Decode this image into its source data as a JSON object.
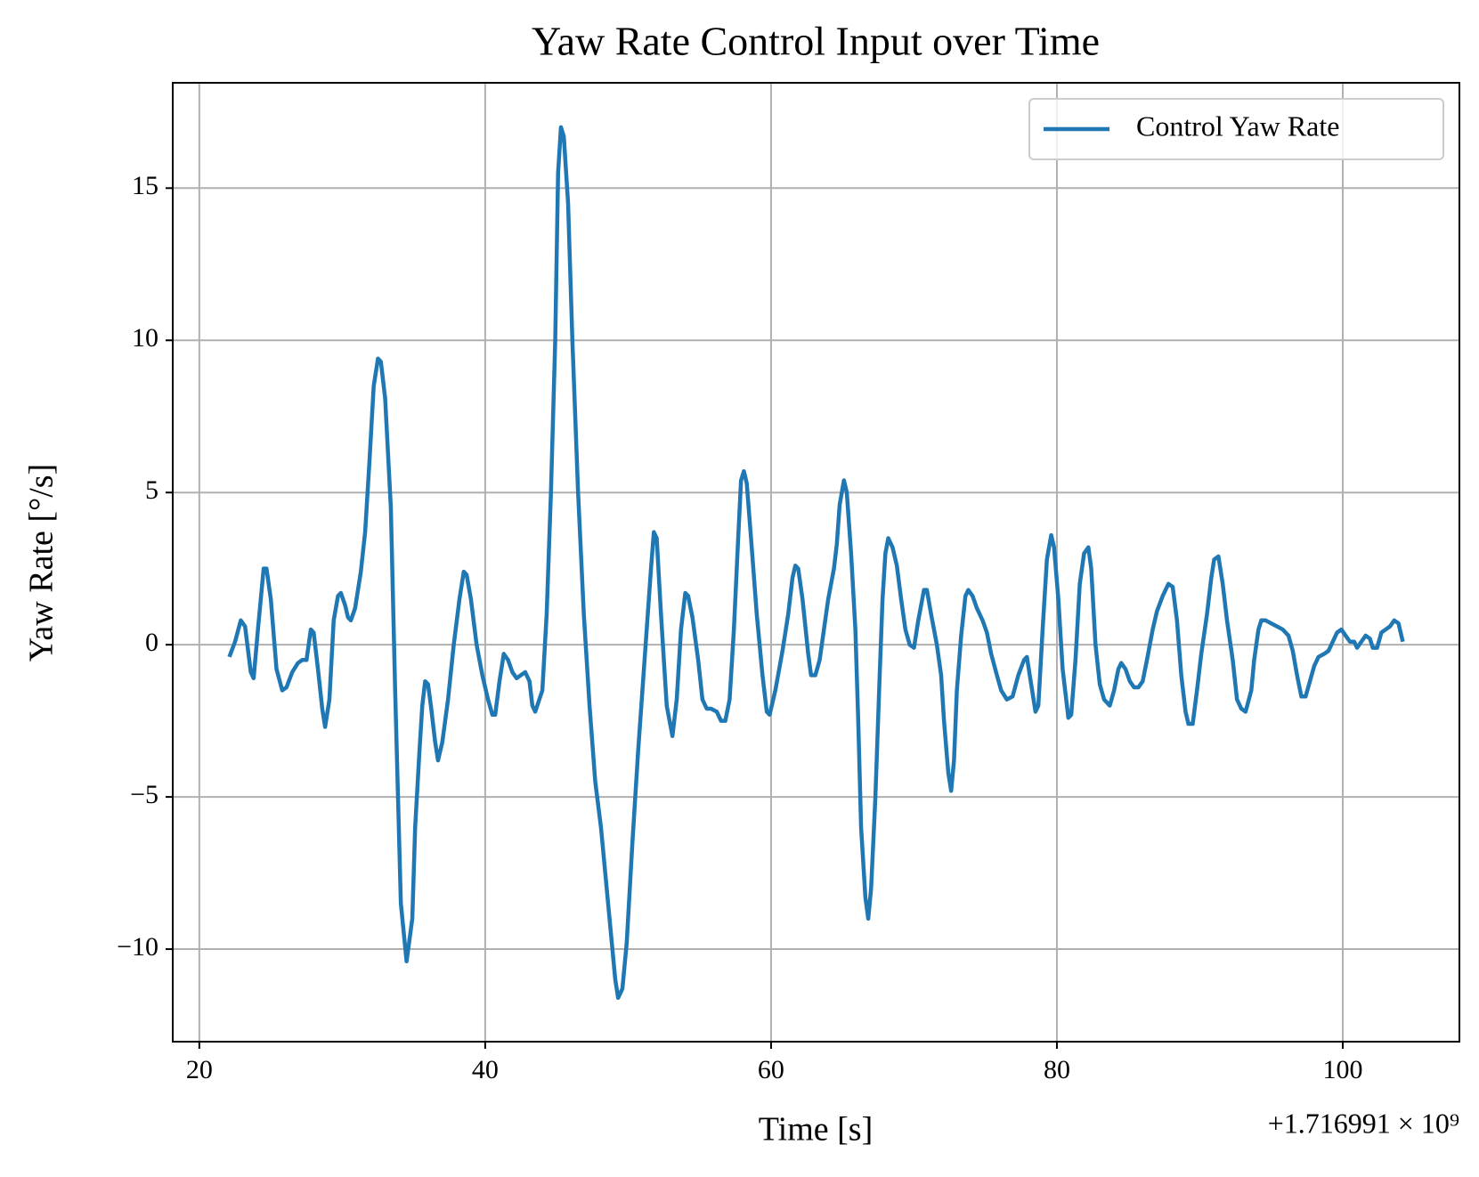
{
  "chart_data": {
    "type": "line",
    "title": "Yaw Rate Control Input over Time",
    "xlabel": "Time [s]",
    "ylabel": "Yaw Rate [°/s]",
    "x_offset": "+1.716991 × 10⁹",
    "xlim": [
      18.14,
      108.16
    ],
    "ylim": [
      -13.04,
      18.46
    ],
    "xticks": [
      20,
      40,
      60,
      80,
      100
    ],
    "yticks": [
      {
        "value": -10,
        "label": "−10"
      },
      {
        "value": -5,
        "label": "−5"
      },
      0,
      5,
      10,
      15
    ],
    "grid": true,
    "legend": "upper right",
    "x": [
      22.1,
      22.5,
      22.9,
      23.2,
      23.6,
      23.8,
      24.1,
      24.5,
      24.7,
      25.0,
      25.4,
      25.8,
      26.1,
      26.5,
      26.9,
      27.2,
      27.5,
      27.8,
      28.0,
      28.3,
      28.6,
      28.8,
      29.1,
      29.4,
      29.7,
      29.9,
      30.2,
      30.4,
      30.6,
      30.9,
      31.3,
      31.6,
      31.9,
      32.2,
      32.5,
      32.7,
      33.0,
      33.4,
      33.7,
      33.9,
      34.1,
      34.5,
      34.9,
      35.1,
      35.4,
      35.6,
      35.8,
      36.0,
      36.2,
      36.5,
      36.7,
      37.0,
      37.4,
      37.8,
      38.2,
      38.5,
      38.7,
      39.0,
      39.4,
      39.8,
      40.2,
      40.5,
      40.7,
      41.0,
      41.3,
      41.6,
      41.9,
      42.2,
      42.5,
      42.8,
      43.1,
      43.3,
      43.5,
      44.0,
      44.3,
      44.6,
      44.9,
      45.1,
      45.3,
      45.5,
      45.8,
      46.1,
      46.5,
      46.9,
      47.3,
      47.7,
      48.1,
      48.4,
      48.8,
      49.1,
      49.3,
      49.6,
      49.9,
      50.3,
      50.7,
      51.0,
      51.3,
      51.6,
      51.8,
      52.0,
      52.3,
      52.7,
      53.1,
      53.4,
      53.7,
      54.0,
      54.2,
      54.5,
      54.9,
      55.2,
      55.5,
      55.8,
      56.2,
      56.5,
      56.8,
      57.1,
      57.4,
      57.7,
      57.9,
      58.1,
      58.3,
      58.6,
      59.0,
      59.4,
      59.7,
      59.9,
      60.3,
      60.8,
      61.2,
      61.5,
      61.7,
      61.9,
      62.2,
      62.6,
      62.8,
      63.1,
      63.4,
      63.7,
      64.0,
      64.4,
      64.6,
      64.8,
      65.1,
      65.3,
      65.6,
      65.9,
      66.1,
      66.3,
      66.6,
      66.8,
      67.0,
      67.3,
      67.6,
      67.8,
      68.0,
      68.2,
      68.5,
      68.8,
      69.1,
      69.4,
      69.7,
      70.0,
      70.3,
      70.7,
      70.9,
      71.2,
      71.6,
      71.9,
      72.1,
      72.4,
      72.6,
      72.8,
      73.0,
      73.3,
      73.6,
      73.8,
      74.1,
      74.4,
      74.8,
      75.1,
      75.4,
      75.8,
      76.1,
      76.5,
      76.9,
      77.3,
      77.7,
      77.9,
      78.2,
      78.5,
      78.7,
      79.0,
      79.3,
      79.6,
      79.8,
      80.1,
      80.4,
      80.8,
      81.0,
      81.3,
      81.6,
      81.9,
      82.2,
      82.4,
      82.7,
      83.0,
      83.3,
      83.7,
      84.0,
      84.3,
      84.5,
      84.8,
      85.1,
      85.4,
      85.7,
      86.0,
      86.3,
      86.7,
      87.0,
      87.4,
      87.8,
      88.1,
      88.4,
      88.7,
      89.0,
      89.2,
      89.5,
      89.8,
      90.1,
      90.5,
      90.8,
      91.0,
      91.3,
      91.6,
      91.9,
      92.3,
      92.6,
      92.9,
      93.2,
      93.6,
      93.8,
      94.1,
      94.3,
      94.6,
      95.0,
      95.4,
      95.8,
      96.2,
      96.5,
      96.8,
      97.1,
      97.4,
      97.7,
      98.0,
      98.3,
      98.7,
      99.0,
      99.3,
      99.6,
      99.9,
      100.2,
      100.5,
      100.8,
      101.0,
      101.3,
      101.6,
      101.9,
      102.1,
      102.4,
      102.7,
      103.0,
      103.3,
      103.6,
      103.9,
      104.2
    ],
    "series": [
      {
        "name": "Control Yaw Rate",
        "color": "#1f77b4",
        "values": [
          -0.4,
          0.1,
          0.8,
          0.6,
          -0.9,
          -1.1,
          0.5,
          2.5,
          2.5,
          1.5,
          -0.8,
          -1.5,
          -1.4,
          -0.9,
          -0.6,
          -0.5,
          -0.5,
          0.5,
          0.4,
          -0.8,
          -2.1,
          -2.7,
          -1.8,
          0.8,
          1.6,
          1.7,
          1.3,
          0.9,
          0.8,
          1.2,
          2.4,
          3.7,
          6.0,
          8.5,
          9.4,
          9.3,
          8.1,
          4.5,
          -1.5,
          -5.0,
          -8.5,
          -10.4,
          -9.0,
          -6.0,
          -3.5,
          -2.0,
          -1.2,
          -1.3,
          -2.0,
          -3.2,
          -3.8,
          -3.2,
          -1.8,
          0.0,
          1.5,
          2.4,
          2.3,
          1.5,
          0.0,
          -1.0,
          -1.8,
          -2.3,
          -2.3,
          -1.2,
          -0.3,
          -0.5,
          -0.9,
          -1.1,
          -1.0,
          -0.9,
          -1.2,
          -2.0,
          -2.2,
          -1.5,
          1.0,
          5.0,
          10.0,
          15.5,
          17.0,
          16.7,
          14.5,
          10.0,
          5.0,
          1.0,
          -2.0,
          -4.5,
          -6.0,
          -7.5,
          -9.5,
          -11.0,
          -11.6,
          -11.3,
          -9.8,
          -6.5,
          -3.5,
          -1.5,
          0.5,
          2.5,
          3.7,
          3.5,
          1.0,
          -2.0,
          -3.0,
          -1.8,
          0.5,
          1.7,
          1.6,
          0.9,
          -0.5,
          -1.8,
          -2.1,
          -2.1,
          -2.2,
          -2.5,
          -2.5,
          -1.8,
          0.5,
          3.5,
          5.4,
          5.7,
          5.3,
          3.5,
          1.0,
          -1.0,
          -2.2,
          -2.3,
          -1.5,
          -0.2,
          1.0,
          2.2,
          2.6,
          2.5,
          1.5,
          -0.3,
          -1.0,
          -1.0,
          -0.5,
          0.5,
          1.5,
          2.5,
          3.3,
          4.6,
          5.4,
          5.0,
          3.0,
          0.5,
          -2.5,
          -6.0,
          -8.3,
          -9.0,
          -8.0,
          -5.0,
          -1.0,
          1.5,
          3.0,
          3.5,
          3.2,
          2.6,
          1.5,
          0.5,
          0.0,
          -0.1,
          0.8,
          1.8,
          1.8,
          1.0,
          0.0,
          -1.0,
          -2.5,
          -4.2,
          -4.8,
          -3.8,
          -1.5,
          0.3,
          1.6,
          1.8,
          1.6,
          1.2,
          0.8,
          0.4,
          -0.3,
          -1.0,
          -1.5,
          -1.8,
          -1.7,
          -1.0,
          -0.5,
          -0.4,
          -1.3,
          -2.2,
          -2.0,
          0.5,
          2.8,
          3.6,
          3.2,
          1.5,
          -0.8,
          -2.4,
          -2.3,
          -0.5,
          2.0,
          3.0,
          3.2,
          2.5,
          0.0,
          -1.3,
          -1.8,
          -2.0,
          -1.5,
          -0.8,
          -0.6,
          -0.8,
          -1.2,
          -1.4,
          -1.4,
          -1.2,
          -0.5,
          0.5,
          1.1,
          1.6,
          2.0,
          1.9,
          0.8,
          -1.0,
          -2.2,
          -2.6,
          -2.6,
          -1.5,
          -0.3,
          1.0,
          2.2,
          2.8,
          2.9,
          2.0,
          0.8,
          -0.5,
          -1.8,
          -2.1,
          -2.2,
          -1.5,
          -0.5,
          0.5,
          0.8,
          0.8,
          0.7,
          0.6,
          0.5,
          0.3,
          -0.2,
          -1.0,
          -1.7,
          -1.7,
          -1.2,
          -0.7,
          -0.4,
          -0.3,
          -0.2,
          0.1,
          0.4,
          0.5,
          0.3,
          0.1,
          0.1,
          -0.1,
          0.1,
          0.3,
          0.2,
          -0.1,
          -0.1,
          0.4,
          0.5,
          0.6,
          0.8,
          0.7,
          0.1
        ]
      }
    ]
  }
}
